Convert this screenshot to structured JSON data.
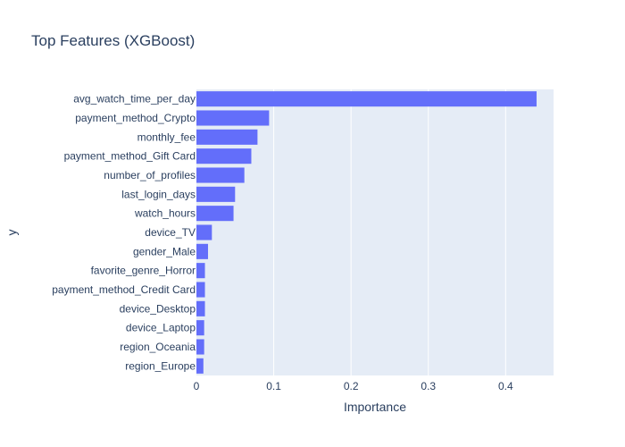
{
  "chart_data": {
    "type": "bar",
    "orientation": "horizontal",
    "title": "Top Features (XGBoost)",
    "xlabel": "Importance",
    "ylabel": "y",
    "xlim": [
      0,
      0.462
    ],
    "xticks": [
      0,
      0.1,
      0.2,
      0.3,
      0.4
    ],
    "xtick_labels": [
      "0",
      "0.1",
      "0.2",
      "0.3",
      "0.4"
    ],
    "categories": [
      "avg_watch_time_per_day",
      "payment_method_Crypto",
      "monthly_fee",
      "payment_method_Gift Card",
      "number_of_profiles",
      "last_login_days",
      "watch_hours",
      "device_TV",
      "gender_Male",
      "favorite_genre_Horror",
      "payment_method_Credit Card",
      "device_Desktop",
      "device_Laptop",
      "region_Oceania",
      "region_Europe"
    ],
    "values": [
      0.44,
      0.094,
      0.079,
      0.071,
      0.062,
      0.05,
      0.048,
      0.02,
      0.015,
      0.011,
      0.011,
      0.011,
      0.01,
      0.01,
      0.009
    ],
    "grid": true,
    "legend": "none"
  },
  "colors": {
    "bar": "#636efa",
    "plot_background": "#e5ecf6",
    "grid": "#ffffff",
    "text": "#2a3f5f"
  }
}
